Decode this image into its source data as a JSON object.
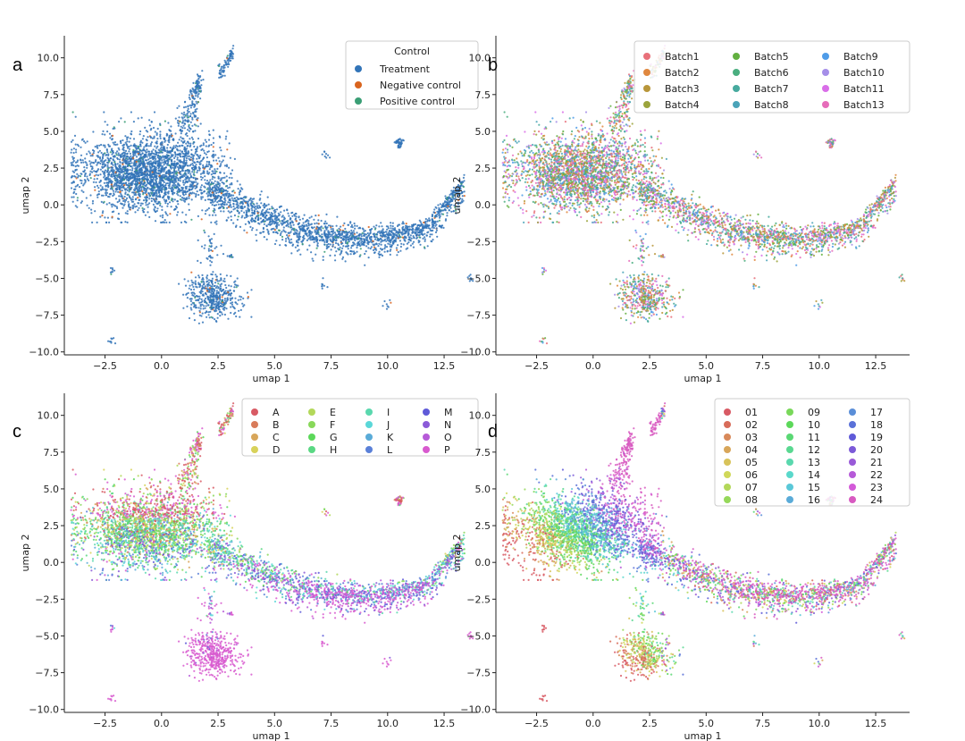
{
  "chart_data": [
    {
      "panel": "a",
      "type": "scatter",
      "xlabel": "umap 1",
      "ylabel": "umap 2",
      "xticks": [
        "−2.5",
        "0.0",
        "2.5",
        "5.0",
        "7.5",
        "10.0",
        "12.5"
      ],
      "yticks": [
        "−10.0",
        "−7.5",
        "−5.0",
        "−2.5",
        "0.0",
        "2.5",
        "5.0",
        "7.5",
        "10.0"
      ],
      "xlim": [
        -4.3,
        14.0
      ],
      "ylim": [
        -10.2,
        11.5
      ],
      "legend": {
        "title": "Control",
        "placement": "top-right",
        "columns": 1,
        "entries": [
          {
            "label": "Treatment",
            "color": "#3274b8"
          },
          {
            "label": "Negative control",
            "color": "#d9641e"
          },
          {
            "label": "Positive control",
            "color": "#3a9e75"
          }
        ]
      },
      "weights": [
        0.94,
        0.02,
        0.04
      ]
    },
    {
      "panel": "b",
      "type": "scatter",
      "xlabel": "umap 1",
      "ylabel": "umap 2",
      "xticks": [
        "−2.5",
        "0.0",
        "2.5",
        "5.0",
        "7.5",
        "10.0",
        "12.5"
      ],
      "yticks": [
        "−10.0",
        "−7.5",
        "−5.0",
        "−2.5",
        "0.0",
        "2.5",
        "5.0",
        "7.5",
        "10.0"
      ],
      "xlim": [
        -4.3,
        14.0
      ],
      "ylim": [
        -10.2,
        11.5
      ],
      "legend": {
        "title": "",
        "placement": "top-right",
        "columns": 3,
        "entries": [
          {
            "label": "Batch1",
            "color": "#e8707a"
          },
          {
            "label": "Batch2",
            "color": "#e0883f"
          },
          {
            "label": "Batch3",
            "color": "#b8963a"
          },
          {
            "label": "Batch4",
            "color": "#9ba43c"
          },
          {
            "label": "Batch5",
            "color": "#62b040"
          },
          {
            "label": "Batch6",
            "color": "#4aae7f"
          },
          {
            "label": "Batch7",
            "color": "#47aa9e"
          },
          {
            "label": "Batch8",
            "color": "#4aa3b8"
          },
          {
            "label": "Batch9",
            "color": "#4f9ce8"
          },
          {
            "label": "Batch10",
            "color": "#a58ee8"
          },
          {
            "label": "Batch11",
            "color": "#d96ee8"
          },
          {
            "label": "Batch13",
            "color": "#e66cba"
          }
        ]
      }
    },
    {
      "panel": "c",
      "type": "scatter",
      "xlabel": "umap 1",
      "ylabel": "umap 2",
      "xticks": [
        "−2.5",
        "0.0",
        "2.5",
        "5.0",
        "7.5",
        "10.0",
        "12.5"
      ],
      "yticks": [
        "−10.0",
        "−7.5",
        "−5.0",
        "−2.5",
        "0.0",
        "2.5",
        "5.0",
        "7.5",
        "10.0"
      ],
      "xlim": [
        -4.3,
        14.0
      ],
      "ylim": [
        -10.2,
        11.5
      ],
      "legend": {
        "title": "",
        "placement": "top-right",
        "columns": 4,
        "entries": [
          "A",
          "B",
          "C",
          "D",
          "E",
          "F",
          "G",
          "H",
          "I",
          "J",
          "K",
          "L",
          "M",
          "N",
          "O",
          "P"
        ]
      }
    },
    {
      "panel": "d",
      "type": "scatter",
      "xlabel": "umap 1",
      "ylabel": "umap 2",
      "xticks": [
        "−2.5",
        "0.0",
        "2.5",
        "5.0",
        "7.5",
        "10.0",
        "12.5"
      ],
      "yticks": [
        "−10.0",
        "−7.5",
        "−5.0",
        "−2.5",
        "0.0",
        "2.5",
        "5.0",
        "7.5",
        "10.0"
      ],
      "xlim": [
        -4.3,
        14.0
      ],
      "ylim": [
        -10.2,
        11.5
      ],
      "legend": {
        "title": "",
        "placement": "top-right",
        "columns": 3,
        "entries": [
          "01",
          "02",
          "03",
          "04",
          "05",
          "06",
          "07",
          "08",
          "09",
          "10",
          "11",
          "12",
          "13",
          "14",
          "15",
          "16",
          "17",
          "18",
          "19",
          "20",
          "21",
          "22",
          "23",
          "24"
        ]
      }
    }
  ],
  "structure": {
    "main_cluster": {
      "center": [
        -0.5,
        2.2
      ],
      "spread": [
        1.6,
        1.3
      ]
    },
    "spike": {
      "from": [
        1.0,
        5.0
      ],
      "to": [
        2.0,
        10.5
      ]
    },
    "tail": {
      "from_x": 2.0,
      "to_x": 13.4,
      "min_y": -2.2
    },
    "lower_cluster": {
      "center": [
        2.3,
        -6.3
      ],
      "spread": [
        0.55,
        0.7
      ]
    },
    "small_groups": [
      [
        2.2,
        -3.0
      ],
      [
        10.5,
        4.2
      ],
      [
        7.3,
        3.4
      ],
      [
        -2.2,
        -9.2
      ],
      [
        -2.2,
        -4.5
      ],
      [
        13.6,
        -5.0
      ],
      [
        7.2,
        -5.4
      ],
      [
        10.0,
        -6.8
      ],
      [
        3.0,
        -3.5
      ],
      [
        -0.3,
        0.9
      ]
    ]
  }
}
